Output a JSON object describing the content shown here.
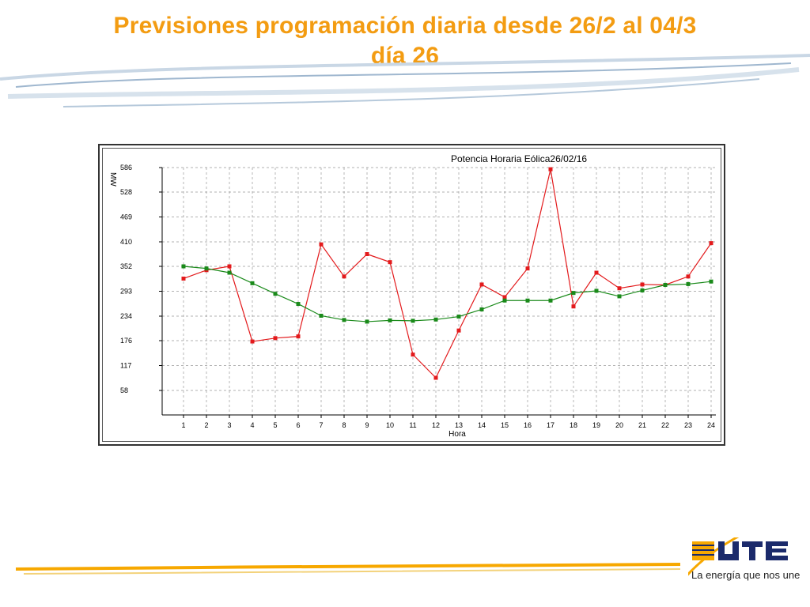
{
  "slide": {
    "title_line1": "Previsiones programación diaria desde 26/2 al 04/3",
    "title_line2": "día 26",
    "logo_text": "La energía que nos une",
    "colors": {
      "title": "#f39c12",
      "logo_orange": "#f7a800",
      "logo_blue": "#1b2a6b",
      "swoosh": "#9fb7cf"
    }
  },
  "chart_data": {
    "type": "line",
    "title": "Potencia Horaria Eólica26/02/16",
    "xlabel": "Hora",
    "ylabel": "MW",
    "categories": [
      "1",
      "2",
      "3",
      "4",
      "5",
      "6",
      "7",
      "8",
      "9",
      "10",
      "11",
      "12",
      "13",
      "14",
      "15",
      "16",
      "17",
      "18",
      "19",
      "20",
      "21",
      "22",
      "23",
      "24"
    ],
    "yticks": [
      58,
      117,
      176,
      234,
      293,
      352,
      410,
      469,
      528,
      586
    ],
    "ylim": [
      0,
      586
    ],
    "grid": true,
    "series": [
      {
        "color": "#e31a1c",
        "values": [
          323,
          343,
          352,
          174,
          182,
          186,
          404,
          328,
          381,
          362,
          143,
          88,
          200,
          309,
          279,
          347,
          582,
          257,
          337,
          300,
          309,
          308,
          328,
          407
        ]
      },
      {
        "color": "#1a8a1a",
        "values": [
          352,
          347,
          337,
          312,
          287,
          263,
          235,
          225,
          221,
          224,
          223,
          226,
          233,
          250,
          271,
          271,
          271,
          289,
          294,
          281,
          295,
          308,
          310,
          316
        ]
      }
    ]
  }
}
